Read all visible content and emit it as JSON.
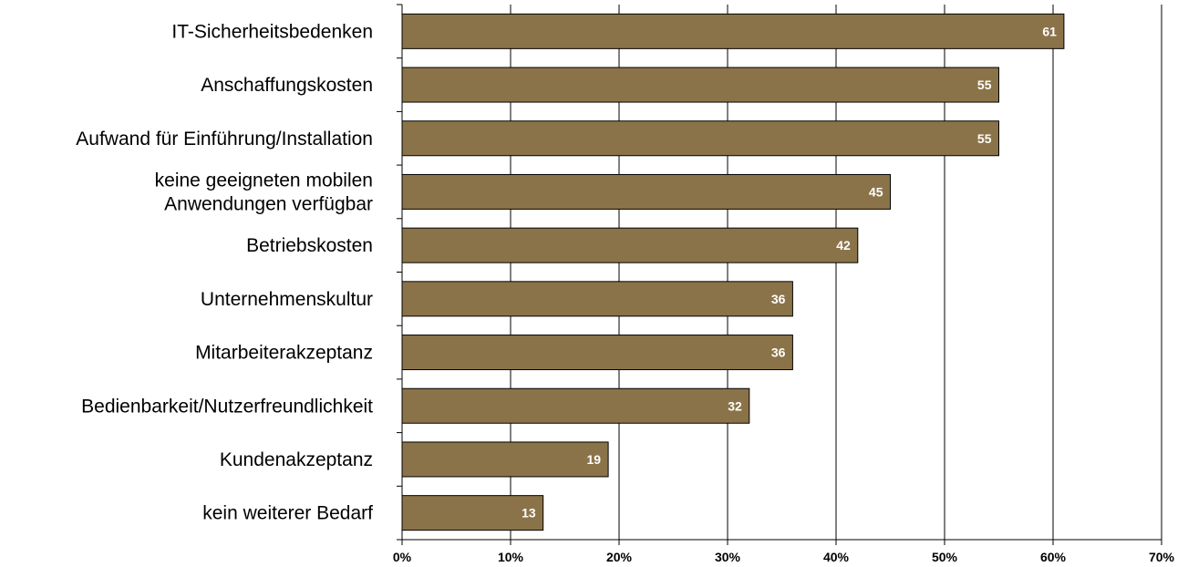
{
  "chart_data": {
    "type": "bar",
    "orientation": "horizontal",
    "title": "",
    "xlabel": "",
    "ylabel": "",
    "categories": [
      "IT-Sicherheitsbedenken",
      "Anschaffungskosten",
      "Aufwand für Einführung/Installation",
      "keine geeigneten mobilen\nAnwendungen verfügbar",
      "Betriebskosten",
      "Unternehmenskultur",
      "Mitarbeiterakzeptanz",
      "Bedienbarkeit/Nutzerfreundlichkeit",
      "Kundenakzeptanz",
      "kein weiterer Bedarf"
    ],
    "values": [
      61,
      55,
      55,
      45,
      42,
      36,
      36,
      32,
      19,
      13
    ],
    "data_labels": [
      "61",
      "55",
      "55",
      "45",
      "42",
      "36",
      "36",
      "32",
      "19",
      "13"
    ],
    "xlim": [
      0,
      70
    ],
    "x_ticks": [
      0,
      10,
      20,
      30,
      40,
      50,
      60,
      70
    ],
    "x_tick_labels": [
      "0%",
      "10%",
      "20%",
      "30%",
      "40%",
      "50%",
      "60%",
      "70%"
    ],
    "grid": true,
    "legend": "none",
    "colors": {
      "bar": "#8B7349",
      "bar_border": "#000000",
      "grid": "#000000",
      "data_label": "#ffffff"
    }
  }
}
